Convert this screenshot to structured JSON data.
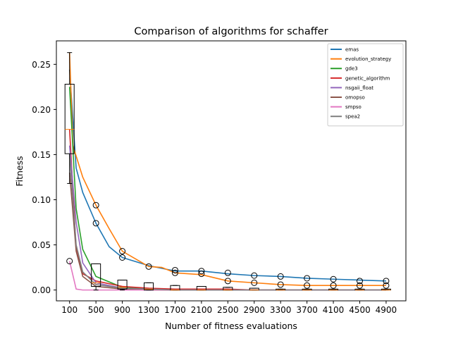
{
  "chart_data": {
    "type": "line",
    "title": "Comparison of algorithms for schaffer",
    "xlabel": "Number of fitness evaluations",
    "ylabel": "Fitness",
    "x_ticks": [
      100,
      500,
      900,
      1300,
      1700,
      2100,
      2500,
      2900,
      3300,
      3700,
      4100,
      4500,
      4900
    ],
    "y_ticks": [
      0.0,
      0.05,
      0.1,
      0.15,
      0.2,
      0.25
    ],
    "y_tick_labels": [
      "0.00",
      "0.05",
      "0.10",
      "0.15",
      "0.20",
      "0.25"
    ],
    "xlim": [
      -100,
      5200
    ],
    "ylim": [
      -0.012,
      0.276
    ],
    "grid": false,
    "legend_location": "top-right",
    "series": [
      {
        "name": "emas",
        "color": "#1f77b4",
        "x": [
          100,
          200,
          300,
          500,
          700,
          900,
          1300,
          1500,
          1700,
          2100,
          2500,
          2900,
          3300,
          3700,
          4100,
          4500,
          4900
        ],
        "y": [
          0.244,
          0.135,
          0.108,
          0.074,
          0.048,
          0.036,
          0.027,
          0.024,
          0.021,
          0.021,
          0.018,
          0.016,
          0.015,
          0.013,
          0.012,
          0.011,
          0.01
        ]
      },
      {
        "name": "evolution_strategy",
        "color": "#ff7f0e",
        "x": [
          100,
          150,
          300,
          500,
          700,
          900,
          1300,
          1500,
          1700,
          2100,
          2500,
          2900,
          3300,
          3700,
          4100,
          4500,
          4900
        ],
        "y": [
          0.263,
          0.16,
          0.125,
          0.094,
          0.068,
          0.043,
          0.026,
          0.025,
          0.019,
          0.017,
          0.01,
          0.008,
          0.006,
          0.005,
          0.005,
          0.005,
          0.005
        ]
      },
      {
        "name": "gde3",
        "color": "#2ca02c",
        "x": [
          100,
          200,
          300,
          500,
          900,
          1300,
          1700,
          2100,
          2500,
          2900,
          3300,
          3700,
          4100,
          4500,
          4900
        ],
        "y": [
          0.225,
          0.09,
          0.045,
          0.015,
          0.003,
          0.001,
          0.0,
          0.0,
          0.0,
          0.0,
          0.0,
          0.0,
          0.0,
          0.0,
          0.0
        ]
      },
      {
        "name": "genetic_algorithm",
        "color": "#d62728",
        "x": [
          100,
          200,
          300,
          500,
          900,
          1300,
          1700,
          2100,
          2500,
          2900,
          3300,
          3700,
          4100,
          4500,
          4900
        ],
        "y": [
          0.178,
          0.045,
          0.018,
          0.01,
          0.004,
          0.002,
          0.001,
          0.001,
          0.001,
          0.0,
          0.0,
          0.0,
          0.0,
          0.0,
          0.0
        ]
      },
      {
        "name": "nsgaii_float",
        "color": "#9467bd",
        "x": [
          100,
          200,
          300,
          500,
          900,
          1300,
          1700,
          2100,
          2500,
          2900,
          3300,
          3700,
          4100,
          4500,
          4900
        ],
        "y": [
          0.16,
          0.075,
          0.03,
          0.008,
          0.002,
          0.001,
          0.0,
          0.0,
          0.0,
          0.0,
          0.0,
          0.0,
          0.0,
          0.0,
          0.0
        ]
      },
      {
        "name": "omopso",
        "color": "#8c564b",
        "x": [
          100,
          200,
          300,
          500,
          900,
          1300,
          1700,
          2100,
          2500,
          2900,
          3300,
          3700,
          4100,
          4500,
          4900
        ],
        "y": [
          0.13,
          0.043,
          0.015,
          0.004,
          0.001,
          0.0,
          0.0,
          0.0,
          0.0,
          0.0,
          0.0,
          0.0,
          0.0,
          0.0,
          0.0
        ]
      },
      {
        "name": "smpso",
        "color": "#e377c2",
        "x": [
          100,
          200,
          300,
          500,
          900,
          1300,
          1700,
          2100,
          2500,
          2900,
          3300,
          3700,
          4100,
          4500,
          4900
        ],
        "y": [
          0.032,
          0.001,
          0.0,
          0.0,
          0.0,
          0.0,
          0.0,
          0.0,
          0.0,
          0.0,
          0.0,
          0.0,
          0.0,
          0.0,
          0.0
        ]
      },
      {
        "name": "spea2",
        "color": "#7f7f7f",
        "x": [
          100,
          200,
          300,
          500,
          900,
          1300,
          1700,
          2100,
          2500,
          2900,
          3300,
          3700,
          4100,
          4500,
          4900
        ],
        "y": [
          0.15,
          0.05,
          0.02,
          0.006,
          0.002,
          0.001,
          0.0,
          0.0,
          0.0,
          0.0,
          0.0,
          0.0,
          0.0,
          0.0,
          0.0
        ]
      }
    ],
    "boxplots": [
      {
        "x": 100,
        "q1": 0.151,
        "q3": 0.228,
        "median": 0.178,
        "whisker_low": 0.118,
        "whisker_high": 0.263
      },
      {
        "x": 500,
        "q1": 0.004,
        "q3": 0.029,
        "median": 0.008,
        "whisker_low": 0.0,
        "whisker_high": 0.029
      },
      {
        "x": 900,
        "q1": 0.001,
        "q3": 0.011,
        "median": 0.003,
        "whisker_low": 0.0,
        "whisker_high": 0.011
      },
      {
        "x": 1300,
        "q1": 0.0,
        "q3": 0.008,
        "median": 0.001,
        "whisker_low": 0.0,
        "whisker_high": 0.008
      },
      {
        "x": 1700,
        "q1": 0.0,
        "q3": 0.005,
        "median": 0.0,
        "whisker_low": 0.0,
        "whisker_high": 0.005
      },
      {
        "x": 2100,
        "q1": 0.0,
        "q3": 0.004,
        "median": 0.0,
        "whisker_low": 0.0,
        "whisker_high": 0.004
      },
      {
        "x": 2500,
        "q1": 0.0,
        "q3": 0.003,
        "median": 0.0,
        "whisker_low": 0.0,
        "whisker_high": 0.003
      },
      {
        "x": 2900,
        "q1": 0.0,
        "q3": 0.002,
        "median": 0.0,
        "whisker_low": 0.0,
        "whisker_high": 0.002
      },
      {
        "x": 3300,
        "q1": 0.0,
        "q3": 0.001,
        "median": 0.0,
        "whisker_low": 0.0,
        "whisker_high": 0.001
      },
      {
        "x": 3700,
        "q1": 0.0,
        "q3": 0.001,
        "median": 0.0,
        "whisker_low": 0.0,
        "whisker_high": 0.001
      },
      {
        "x": 4100,
        "q1": 0.0,
        "q3": 0.001,
        "median": 0.0,
        "whisker_low": 0.0,
        "whisker_high": 0.001
      },
      {
        "x": 4500,
        "q1": 0.0,
        "q3": 0.001,
        "median": 0.0,
        "whisker_low": 0.0,
        "whisker_high": 0.001
      },
      {
        "x": 4900,
        "q1": 0.0,
        "q3": 0.001,
        "median": 0.0,
        "whisker_low": 0.0,
        "whisker_high": 0.001
      }
    ],
    "outliers": [
      {
        "x": 100,
        "y": 0.032
      },
      {
        "x": 500,
        "y": 0.094
      },
      {
        "x": 500,
        "y": 0.074
      },
      {
        "x": 900,
        "y": 0.043
      },
      {
        "x": 900,
        "y": 0.036
      },
      {
        "x": 1300,
        "y": 0.026
      },
      {
        "x": 1700,
        "y": 0.022
      },
      {
        "x": 1700,
        "y": 0.019
      },
      {
        "x": 2100,
        "y": 0.021
      },
      {
        "x": 2100,
        "y": 0.018
      },
      {
        "x": 2500,
        "y": 0.019
      },
      {
        "x": 2500,
        "y": 0.01
      },
      {
        "x": 2900,
        "y": 0.016
      },
      {
        "x": 2900,
        "y": 0.008
      },
      {
        "x": 3300,
        "y": 0.015
      },
      {
        "x": 3300,
        "y": 0.006
      },
      {
        "x": 3700,
        "y": 0.013
      },
      {
        "x": 3700,
        "y": 0.005
      },
      {
        "x": 4100,
        "y": 0.012
      },
      {
        "x": 4100,
        "y": 0.005
      },
      {
        "x": 4500,
        "y": 0.01
      },
      {
        "x": 4500,
        "y": 0.005
      },
      {
        "x": 4900,
        "y": 0.01
      },
      {
        "x": 4900,
        "y": 0.005
      }
    ]
  }
}
